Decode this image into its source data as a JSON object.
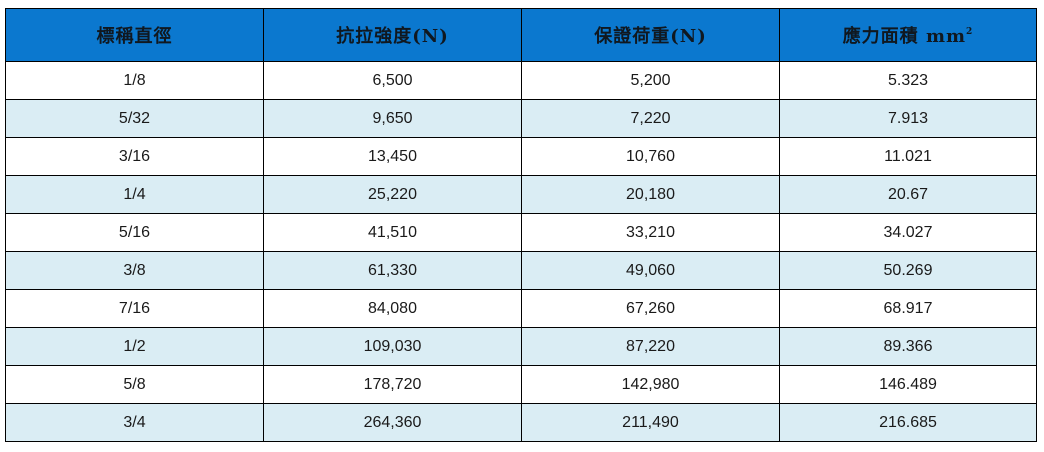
{
  "table": {
    "headers": {
      "diameter": "標稱直徑",
      "tensile": "抗拉強度(N)",
      "proof": "保證荷重(N)",
      "area": "應力面積 mm",
      "area_sup": "2"
    },
    "rows": [
      {
        "diameter": "1/8",
        "tensile": "6,500",
        "proof": "5,200",
        "area": "5.323"
      },
      {
        "diameter": "5/32",
        "tensile": "9,650",
        "proof": "7,220",
        "area": "7.913"
      },
      {
        "diameter": "3/16",
        "tensile": "13,450",
        "proof": "10,760",
        "area": "11.021"
      },
      {
        "diameter": "1/4",
        "tensile": "25,220",
        "proof": "20,180",
        "area": "20.67"
      },
      {
        "diameter": "5/16",
        "tensile": "41,510",
        "proof": "33,210",
        "area": "34.027"
      },
      {
        "diameter": "3/8",
        "tensile": "61,330",
        "proof": "49,060",
        "area": "50.269"
      },
      {
        "diameter": "7/16",
        "tensile": "84,080",
        "proof": "67,260",
        "area": "68.917"
      },
      {
        "diameter": "1/2",
        "tensile": "109,030",
        "proof": "87,220",
        "area": "89.366"
      },
      {
        "diameter": "5/8",
        "tensile": "178,720",
        "proof": "142,980",
        "area": "146.489"
      },
      {
        "diameter": "3/4",
        "tensile": "264,360",
        "proof": "211,490",
        "area": "216.685"
      }
    ]
  },
  "colors": {
    "header_bg": "#0b78cf",
    "stripe_bg": "#daedf4",
    "border": "#000000"
  }
}
